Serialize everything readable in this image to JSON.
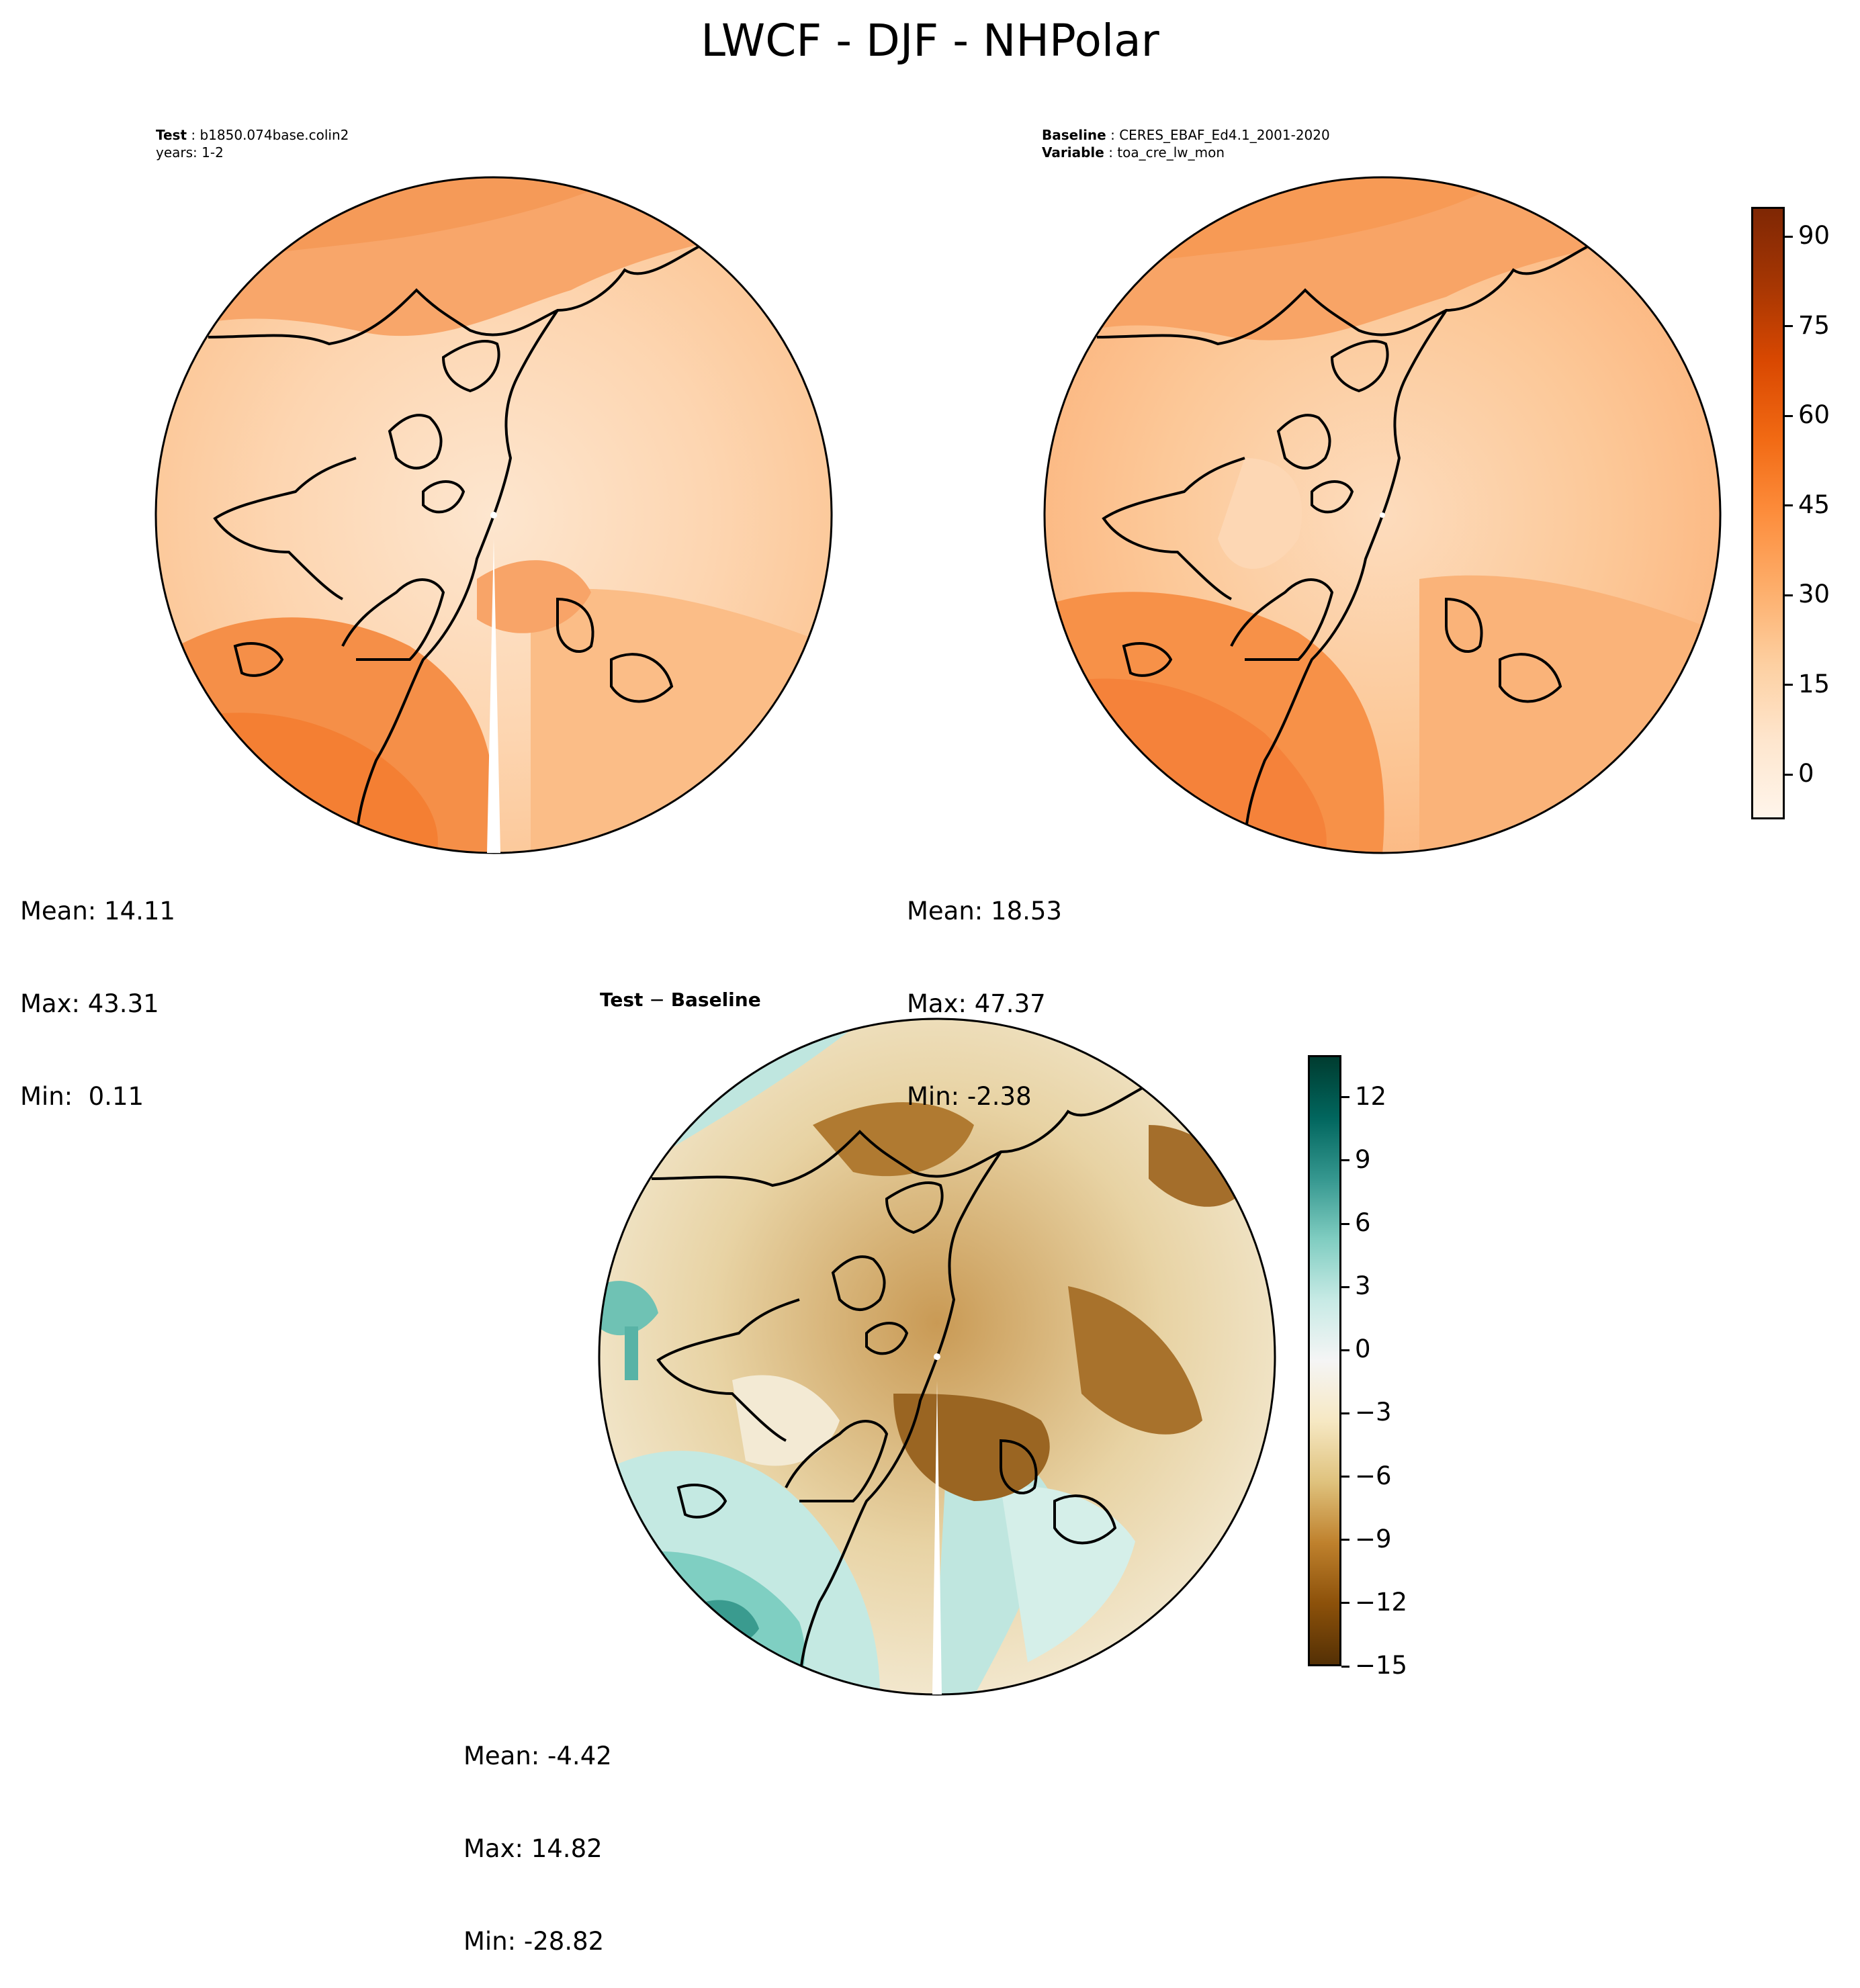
{
  "figure": {
    "title": "LWCF - DJF - NHPolar"
  },
  "panels": [
    {
      "id": "test",
      "meta": [
        {
          "key": "Test",
          "value": "b1850.074base.colin2"
        },
        {
          "key": "",
          "value": "years: 1-2"
        }
      ],
      "stats": {
        "mean": "Mean: 14.11",
        "max": "Max: 43.31",
        "min": "Min:  0.11"
      }
    },
    {
      "id": "baseline",
      "meta": [
        {
          "key": "Baseline",
          "value": "CERES_EBAF_Ed4.1_2001-2020"
        },
        {
          "key": "Variable",
          "value": "toa_cre_lw_mon"
        }
      ],
      "stats": {
        "mean": "Mean: 18.53",
        "max": "Max: 47.37",
        "min": "Min: -2.38"
      }
    },
    {
      "id": "diff",
      "title_left": "Test",
      "title_sep": " − ",
      "title_right": "Baseline",
      "stats": {
        "mean": "Mean: -4.42",
        "max": "Max: 14.82",
        "min": "Min: -28.82"
      }
    }
  ],
  "colorbars": [
    {
      "id": "field",
      "colormap": "Oranges",
      "range": [
        -7.5,
        95
      ],
      "ticks": [
        "0",
        "15",
        "30",
        "45",
        "60",
        "75",
        "90"
      ],
      "tick_values": [
        0,
        15,
        30,
        45,
        60,
        75,
        90
      ],
      "colors": [
        "#fff5eb",
        "#fee6ce",
        "#fdd0a2",
        "#fdae6b",
        "#fd8d3c",
        "#f16913",
        "#d94801",
        "#a63603",
        "#7f2704"
      ]
    },
    {
      "id": "diff",
      "colormap": "BrBG",
      "range": [
        -15,
        14
      ],
      "ticks": [
        "12",
        "9",
        "6",
        "3",
        "0",
        "−3",
        "−6",
        "−9",
        "−12",
        "−15"
      ],
      "tick_values": [
        12,
        9,
        6,
        3,
        0,
        -3,
        -6,
        -9,
        -12,
        -15
      ],
      "colors": [
        "#543005",
        "#8c510a",
        "#bf812d",
        "#dfc27d",
        "#f6e8c3",
        "#f5f5f5",
        "#c7eae5",
        "#80cdc1",
        "#35978f",
        "#01665e",
        "#003c30"
      ]
    }
  ]
}
